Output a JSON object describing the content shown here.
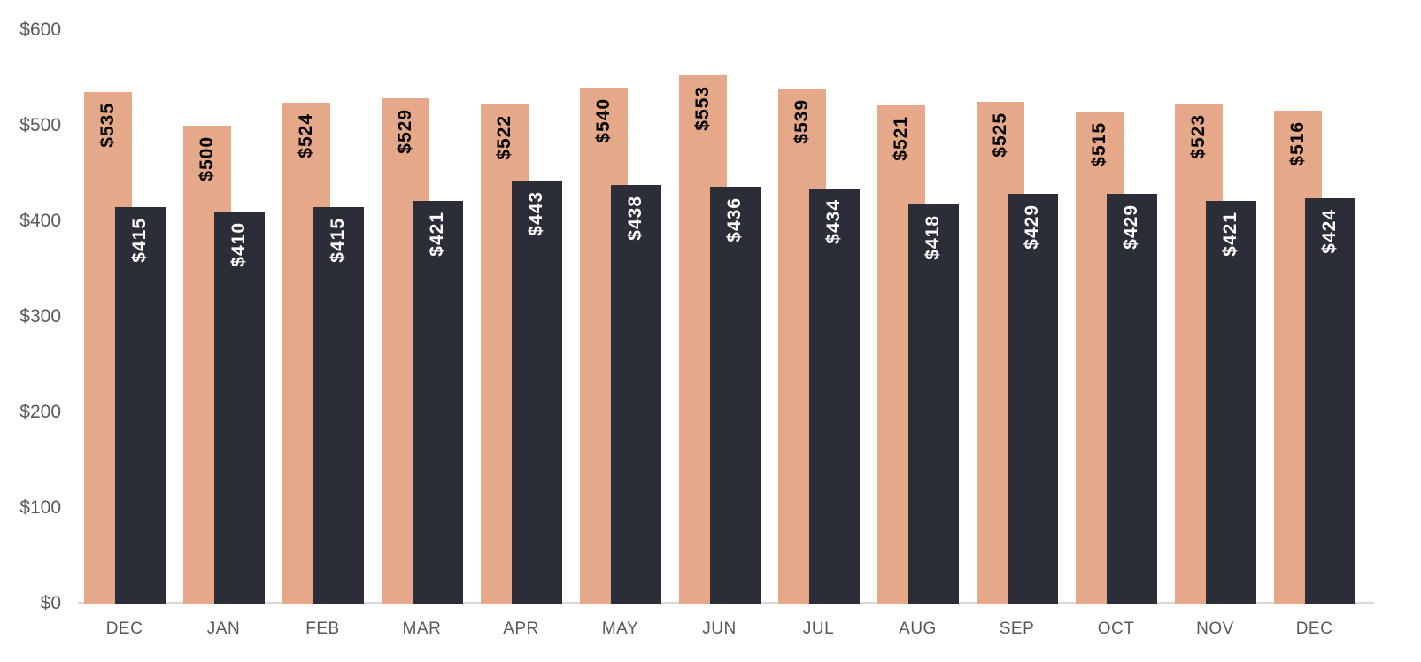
{
  "chart_data": {
    "type": "bar",
    "title": "",
    "xlabel": "",
    "ylabel": "",
    "categories": [
      "DEC",
      "JAN",
      "FEB",
      "MAR",
      "APR",
      "MAY",
      "JUN",
      "JUL",
      "AUG",
      "SEP",
      "OCT",
      "NOV",
      "DEC"
    ],
    "series": [
      {
        "name": "orange-series",
        "color": "#E5A888",
        "label_color": "#000000",
        "values": [
          535,
          500,
          524,
          529,
          522,
          540,
          553,
          539,
          521,
          525,
          515,
          523,
          516
        ],
        "labels": [
          "$535",
          "$500",
          "$524",
          "$529",
          "$522",
          "$540",
          "$553",
          "$539",
          "$521",
          "$525",
          "$515",
          "$523",
          "$516"
        ]
      },
      {
        "name": "dark-series",
        "color": "#2B2D38",
        "label_color": "#FFFFFF",
        "values": [
          415,
          410,
          415,
          421,
          443,
          438,
          436,
          434,
          418,
          429,
          429,
          421,
          424
        ],
        "labels": [
          "$415",
          "$410",
          "$415",
          "$421",
          "$443",
          "$438",
          "$436",
          "$434",
          "$418",
          "$429",
          "$429",
          "$421",
          "$424"
        ]
      }
    ],
    "y_ticks": [
      "$600",
      "$500",
      "$400",
      "$300",
      "$200",
      "$100",
      "$0"
    ],
    "y_tick_values": [
      600,
      500,
      400,
      300,
      200,
      100,
      0
    ],
    "ylim": [
      0,
      600
    ],
    "grid": false,
    "legend": false,
    "axis_text_color": "#595959",
    "axis_line_color": "#D9D9D9",
    "background": "#FFFFFF"
  }
}
